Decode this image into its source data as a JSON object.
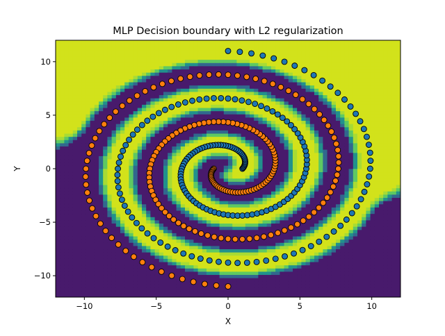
{
  "chart_data": {
    "type": "scatter",
    "title": "MLP Decision boundary with L2 regularization",
    "xlabel": "X",
    "ylabel": "Y",
    "xlim": [
      -12,
      12
    ],
    "ylim": [
      -12,
      12
    ],
    "xticks": [
      -10,
      -5,
      0,
      5,
      10
    ],
    "yticks": [
      -10,
      -5,
      0,
      5,
      10
    ],
    "xtick_labels": [
      "−10",
      "−5",
      "0",
      "5",
      "10"
    ],
    "ytick_labels": [
      "−10",
      "−5",
      "0",
      "5",
      "10"
    ],
    "grid": false,
    "background": "filled decision-boundary contour",
    "colors": {
      "region_class0": "#d2e21b",
      "region_class1": "#481a6c",
      "boundary_band_1": "#a8db34",
      "boundary_band_2": "#5ec962",
      "boundary_band_3": "#21918c",
      "boundary_band_4": "#31688e",
      "class0_points": "#1f77b4",
      "class1_points": "#ff7f0e"
    },
    "spirals": {
      "class0": "blue points, spiral radius from 1.0 to 11.0 over angles 0 to 4.5 pi",
      "class1": "orange points, same spiral rotated by pi"
    }
  }
}
